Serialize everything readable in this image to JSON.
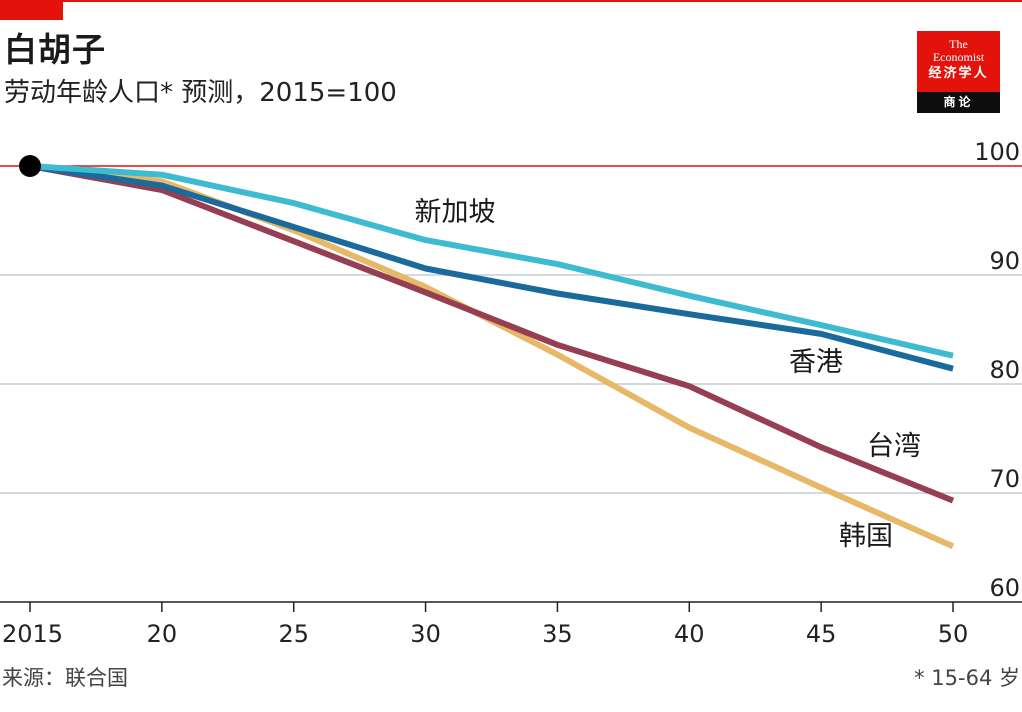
{
  "header": {
    "title": "白胡子",
    "subtitle": "劳动年龄人口* 预测，2015=100"
  },
  "logo": {
    "the": "The",
    "name": "Economist",
    "cn": "经济学人",
    "section": "商论"
  },
  "footer": {
    "source": "来源：联合国",
    "footnote": "* 15-64 岁"
  },
  "colors": {
    "accent": "#e3120b",
    "singapore": "#3ebbd0",
    "hongkong": "#1b6a9c",
    "taiwan": "#963f52",
    "korea": "#e7b867",
    "grid": "#c6cfd5",
    "baseline": "#e3120b"
  },
  "chart_data": {
    "type": "line",
    "x": [
      2015,
      2020,
      2025,
      2030,
      2035,
      2040,
      2045,
      2050
    ],
    "x_tick_labels": [
      "2015",
      "20",
      "25",
      "30",
      "35",
      "40",
      "45",
      "50"
    ],
    "y_ticks": [
      60,
      70,
      80,
      90,
      100
    ],
    "ylim": [
      60,
      102
    ],
    "xlim": [
      2015,
      2050
    ],
    "grid": true,
    "reference_line": 100,
    "series": [
      {
        "name": "新加坡",
        "color": "#3ebbd0",
        "values": [
          100,
          99.2,
          96.6,
          93.2,
          91.0,
          88.1,
          85.4,
          82.6
        ]
      },
      {
        "name": "香港",
        "color": "#1b6a9c",
        "values": [
          100,
          98.2,
          94.4,
          90.6,
          88.3,
          86.4,
          84.6,
          81.4
        ]
      },
      {
        "name": "台湾",
        "color": "#963f52",
        "values": [
          100,
          97.8,
          93.1,
          88.4,
          83.6,
          79.8,
          74.2,
          69.3
        ]
      },
      {
        "name": "韩国",
        "color": "#e7b867",
        "values": [
          100,
          98.6,
          94.1,
          88.9,
          82.7,
          76.0,
          70.5,
          65.1
        ]
      }
    ]
  }
}
